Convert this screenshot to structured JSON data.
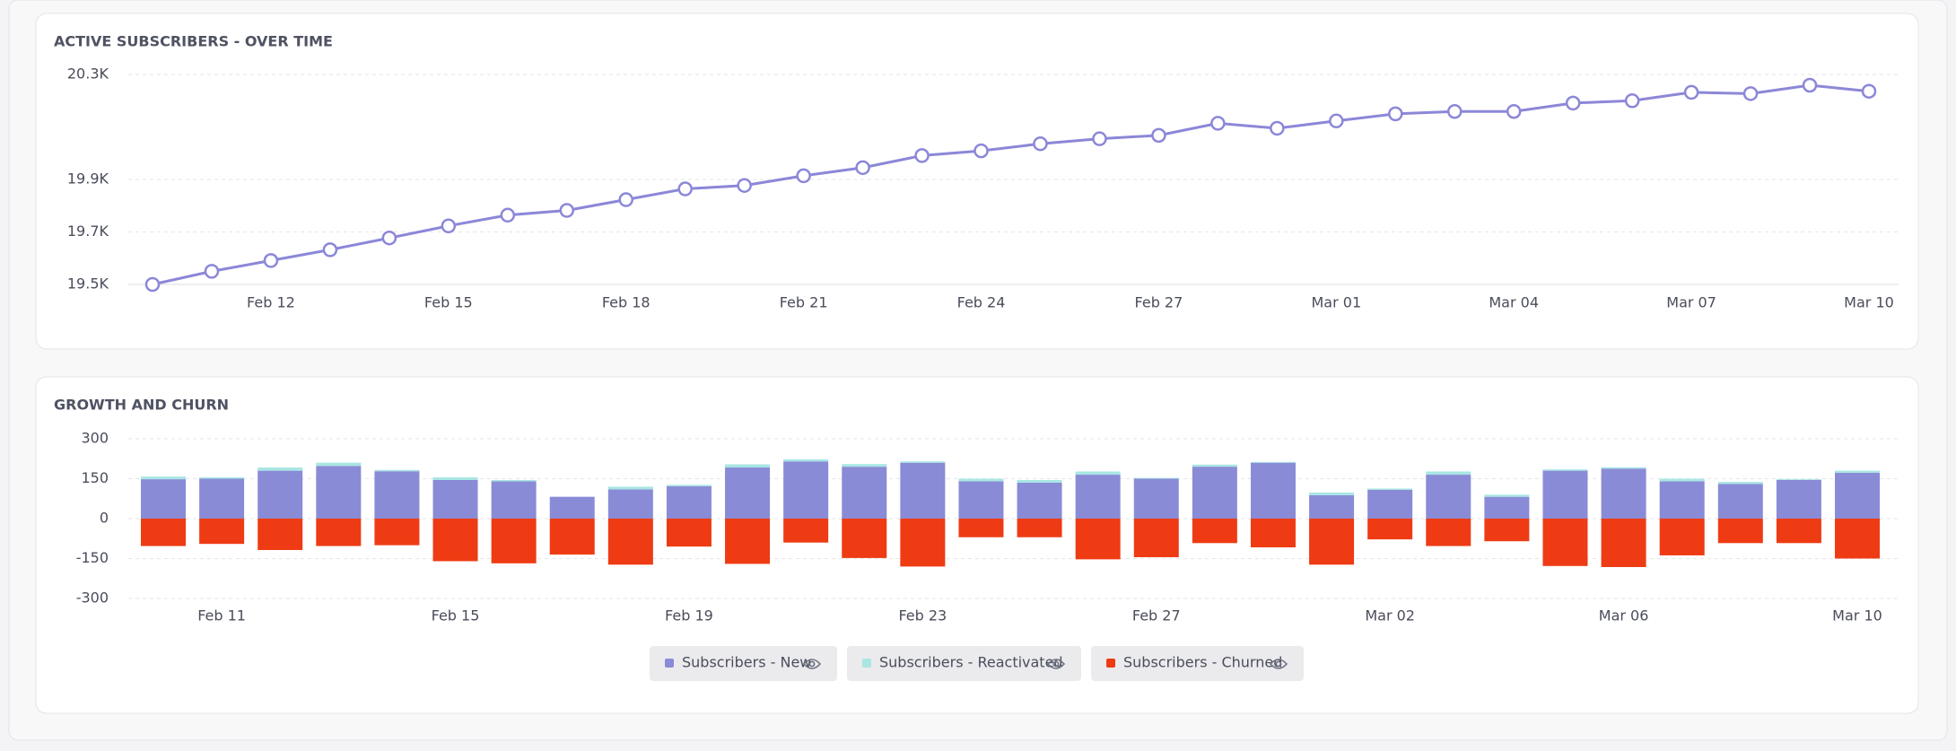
{
  "chart_data": [
    {
      "type": "line",
      "title": "ACTIVE SUBSCRIBERS - OVER TIME",
      "categories": [
        null,
        null,
        "Feb 12",
        null,
        null,
        "Feb 15",
        null,
        null,
        "Feb 18",
        null,
        null,
        "Feb 21",
        null,
        null,
        "Feb 24",
        null,
        null,
        "Feb 27",
        null,
        null,
        "Mar 01",
        null,
        null,
        "Mar 04",
        null,
        null,
        "Mar 07",
        null,
        null,
        "Mar 10"
      ],
      "values": [
        19500,
        19550,
        19591,
        19632,
        19677,
        19723,
        19764,
        19782,
        19823,
        19864,
        19877,
        19914,
        19945,
        19991,
        20009,
        20036,
        20055,
        20068,
        20114,
        20095,
        20123,
        20150,
        20159,
        20159,
        20191,
        20200,
        20232,
        20227,
        20259,
        20236
      ],
      "color": "#8b87d8",
      "ylim": [
        19500,
        20300
      ],
      "yticks": [
        {
          "value": 19500,
          "label": "19.5K"
        },
        {
          "value": 19700,
          "label": "19.7K"
        },
        {
          "value": 19900,
          "label": "19.9K"
        },
        {
          "value": 20300,
          "label": "20.3K"
        }
      ],
      "grid": true
    },
    {
      "type": "stacked-bar",
      "title": "GROWTH AND CHURN",
      "categories": [
        null,
        "Feb 11",
        null,
        null,
        null,
        "Feb 15",
        null,
        null,
        null,
        "Feb 19",
        null,
        null,
        null,
        "Feb 23",
        null,
        null,
        null,
        "Feb 27",
        null,
        null,
        null,
        "Mar 02",
        null,
        null,
        null,
        "Mar 06",
        null,
        null,
        null,
        "Mar 10"
      ],
      "series": [
        {
          "name": "Subscribers - New",
          "color": "#8a8bd6",
          "values": [
            148,
            150,
            180,
            198,
            178,
            145,
            140,
            82,
            110,
            122,
            192,
            215,
            195,
            210,
            140,
            135,
            165,
            150,
            195,
            210,
            88,
            108,
            165,
            82,
            180,
            188,
            140,
            130,
            145,
            172
          ]
        },
        {
          "name": "Subscribers - Reactivated",
          "color": "#a8e6e3",
          "values": [
            10,
            5,
            12,
            12,
            5,
            10,
            5,
            0,
            10,
            5,
            12,
            8,
            10,
            5,
            10,
            10,
            12,
            3,
            8,
            3,
            10,
            5,
            12,
            8,
            5,
            5,
            10,
            8,
            3,
            8
          ]
        },
        {
          "name": "Subscribers - Churned",
          "color": "#ee3b14",
          "values": [
            -103,
            -95,
            -118,
            -103,
            -100,
            -160,
            -168,
            -135,
            -173,
            -105,
            -170,
            -90,
            -148,
            -180,
            -70,
            -70,
            -153,
            -145,
            -92,
            -108,
            -173,
            -78,
            -103,
            -85,
            -178,
            -182,
            -138,
            -92,
            -92,
            -150
          ]
        }
      ],
      "ylim": [
        -300,
        300
      ],
      "yticks": [
        300,
        150,
        0,
        -150,
        -300
      ],
      "grid": true
    }
  ]
}
